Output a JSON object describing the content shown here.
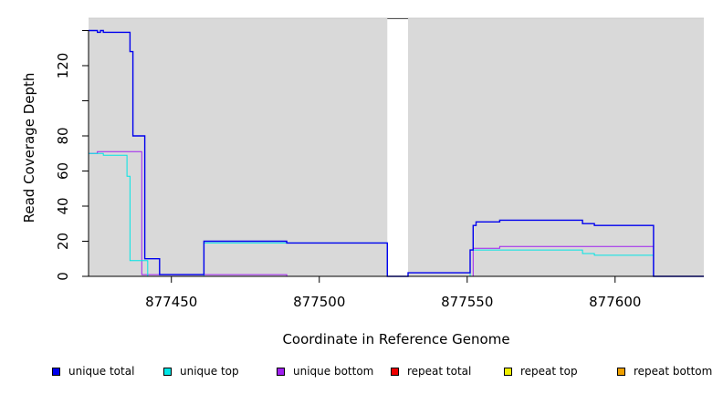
{
  "chart_data": {
    "type": "line",
    "title": "",
    "xlabel": "Coordinate in Reference Genome",
    "ylabel": "Read Coverage Depth",
    "xlim": [
      877422,
      877630
    ],
    "ylim": [
      0,
      147
    ],
    "xticks": [
      877450,
      877500,
      877550,
      877600
    ],
    "xtick_labels": [
      "877450",
      "877500",
      "877550",
      "877600"
    ],
    "yticks": [
      0,
      20,
      40,
      60,
      80,
      100,
      120,
      140
    ],
    "ytick_labels": [
      "0",
      "20",
      "40",
      "60",
      "80",
      "",
      "120",
      ""
    ],
    "grid": false,
    "background": "#d9d9d9",
    "gap": [
      877523,
      877530
    ],
    "legend_position": "bottom",
    "series": [
      {
        "name": "unique total",
        "color": "#0000ee",
        "steps": [
          [
            877422,
            140
          ],
          [
            877425,
            139
          ],
          [
            877426,
            140
          ],
          [
            877427,
            139
          ],
          [
            877436,
            128
          ],
          [
            877437,
            80
          ],
          [
            877441,
            10
          ],
          [
            877446,
            1
          ],
          [
            877461,
            20
          ],
          [
            877489,
            19
          ],
          [
            877523,
            0
          ],
          [
            877530,
            2
          ],
          [
            877551,
            15
          ],
          [
            877552,
            29
          ],
          [
            877553,
            31
          ],
          [
            877561,
            32
          ],
          [
            877589,
            30
          ],
          [
            877593,
            29
          ],
          [
            877613,
            0
          ],
          [
            877630,
            0
          ]
        ]
      },
      {
        "name": "unique top",
        "color": "#00e5e5",
        "steps": [
          [
            877422,
            70
          ],
          [
            877424,
            70
          ],
          [
            877427,
            69
          ],
          [
            877435,
            57
          ],
          [
            877436,
            9
          ],
          [
            877441,
            9
          ],
          [
            877442,
            0
          ],
          [
            877461,
            19
          ],
          [
            877489,
            19
          ],
          [
            877523,
            0
          ],
          [
            877551,
            15
          ],
          [
            877552,
            15
          ],
          [
            877589,
            13
          ],
          [
            877593,
            12
          ],
          [
            877613,
            0
          ],
          [
            877630,
            0
          ]
        ]
      },
      {
        "name": "unique bottom",
        "color": "#a020f0",
        "steps": [
          [
            877422,
            70
          ],
          [
            877425,
            71
          ],
          [
            877440,
            1
          ],
          [
            877489,
            0
          ],
          [
            877530,
            0
          ],
          [
            877552,
            16
          ],
          [
            877561,
            17
          ],
          [
            877613,
            0
          ],
          [
            877630,
            0
          ]
        ]
      },
      {
        "name": "repeat total",
        "color": "#ee0000",
        "steps": [
          [
            877422,
            0
          ],
          [
            877630,
            0
          ]
        ]
      },
      {
        "name": "repeat top",
        "color": "#eeee00",
        "steps": [
          [
            877422,
            0
          ],
          [
            877630,
            0
          ]
        ]
      },
      {
        "name": "repeat bottom",
        "color": "#eea000",
        "steps": [
          [
            877422,
            0
          ],
          [
            877630,
            0
          ]
        ]
      }
    ]
  }
}
